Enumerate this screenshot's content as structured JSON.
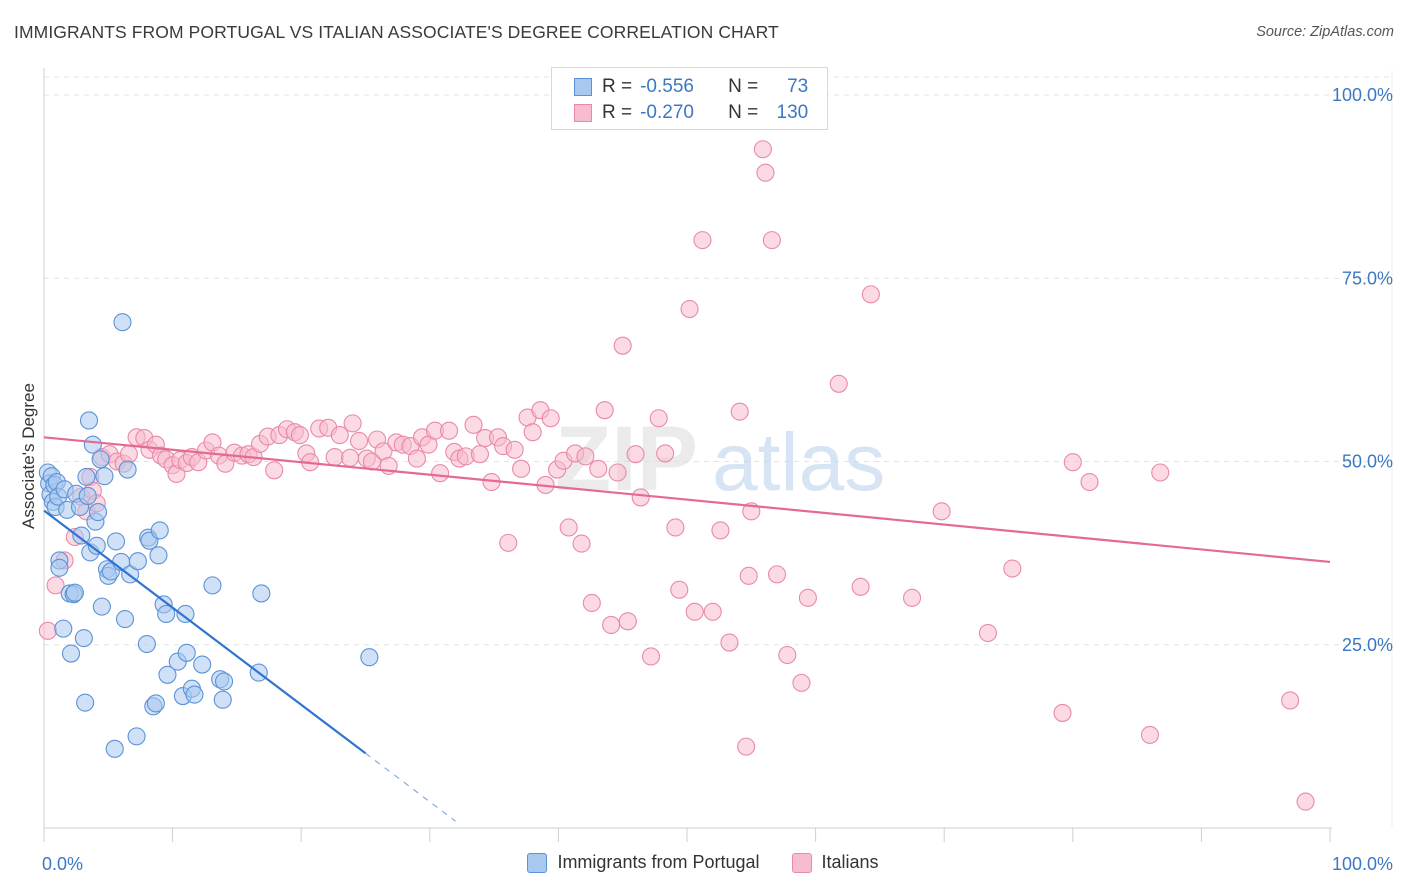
{
  "header": {
    "title": "IMMIGRANTS FROM PORTUGAL VS ITALIAN ASSOCIATE'S DEGREE CORRELATION CHART",
    "source": "Source: ZipAtlas.com"
  },
  "legend_top": {
    "rows": [
      {
        "r_label": "R =",
        "r_value": "-0.556",
        "n_label": "N =",
        "n_value": "73"
      },
      {
        "r_label": "R =",
        "r_value": "-0.270",
        "n_label": "N =",
        "n_value": "130"
      }
    ]
  },
  "watermark": {
    "zip": "ZIP",
    "atlas": "atlas"
  },
  "colors": {
    "blue_fill": "#a9c8f0",
    "blue_stroke": "#5b93d6",
    "blue_line": "#2f74d0",
    "pink_fill": "#f7bccd",
    "pink_stroke": "#e88aa8",
    "pink_line": "#e36a92",
    "tick_label": "#3b78c4"
  },
  "chart_data": {
    "type": "scatter",
    "title": "IMMIGRANTS FROM PORTUGAL VS ITALIAN ASSOCIATE'S DEGREE CORRELATION CHART",
    "xlabel": "",
    "ylabel": "Associate's Degree",
    "xlim": [
      0,
      100
    ],
    "ylim": [
      0,
      100
    ],
    "x_tick_labels": [
      "0.0%",
      "100.0%"
    ],
    "y_ticks": [
      25,
      50,
      75,
      100
    ],
    "y_tick_labels": [
      "25.0%",
      "50.0%",
      "75.0%",
      "100.0%"
    ],
    "grid": true,
    "legend_position": "bottom-center",
    "series": [
      {
        "name": "Immigrants from Portugal",
        "color": "#a9c8f0",
        "r": -0.556,
        "n": 73,
        "trend": {
          "x0": 0,
          "y0": 43.3,
          "x1": 25,
          "y1": 10.2,
          "dashed_to_x": 32
        },
        "points": [
          [
            0.3,
            48.5
          ],
          [
            0.4,
            47.0
          ],
          [
            0.5,
            45.5
          ],
          [
            0.6,
            48.0
          ],
          [
            0.7,
            44.5
          ],
          [
            0.8,
            46.8
          ],
          [
            0.9,
            43.8
          ],
          [
            1.0,
            47.2
          ],
          [
            1.1,
            45.2
          ],
          [
            1.2,
            36.5
          ],
          [
            1.2,
            35.5
          ],
          [
            1.5,
            27.2
          ],
          [
            1.6,
            46.2
          ],
          [
            1.8,
            43.4
          ],
          [
            2.0,
            32.0
          ],
          [
            2.1,
            23.8
          ],
          [
            2.3,
            31.9
          ],
          [
            2.4,
            32.1
          ],
          [
            2.5,
            45.6
          ],
          [
            2.8,
            43.8
          ],
          [
            2.9,
            39.9
          ],
          [
            3.1,
            25.9
          ],
          [
            3.2,
            17.1
          ],
          [
            3.3,
            47.9
          ],
          [
            3.4,
            45.3
          ],
          [
            3.5,
            55.6
          ],
          [
            3.6,
            37.6
          ],
          [
            3.8,
            52.3
          ],
          [
            4.0,
            41.8
          ],
          [
            4.1,
            38.5
          ],
          [
            4.2,
            43.1
          ],
          [
            4.4,
            50.3
          ],
          [
            4.5,
            30.2
          ],
          [
            4.7,
            48.0
          ],
          [
            4.9,
            35.3
          ],
          [
            5.0,
            34.4
          ],
          [
            5.2,
            35.0
          ],
          [
            5.5,
            10.8
          ],
          [
            5.6,
            39.1
          ],
          [
            6.0,
            36.3
          ],
          [
            6.1,
            69.0
          ],
          [
            6.3,
            28.5
          ],
          [
            6.5,
            48.9
          ],
          [
            6.7,
            34.6
          ],
          [
            7.2,
            12.5
          ],
          [
            7.3,
            36.4
          ],
          [
            8.0,
            25.1
          ],
          [
            8.1,
            39.6
          ],
          [
            8.2,
            39.2
          ],
          [
            8.5,
            16.6
          ],
          [
            8.7,
            17.0
          ],
          [
            8.9,
            37.2
          ],
          [
            9.0,
            40.6
          ],
          [
            9.3,
            30.5
          ],
          [
            9.5,
            29.2
          ],
          [
            9.6,
            20.9
          ],
          [
            10.4,
            22.7
          ],
          [
            10.8,
            18.0
          ],
          [
            11.0,
            29.2
          ],
          [
            11.1,
            23.9
          ],
          [
            11.5,
            19.0
          ],
          [
            11.7,
            18.2
          ],
          [
            12.3,
            22.3
          ],
          [
            13.1,
            33.1
          ],
          [
            13.7,
            20.3
          ],
          [
            13.9,
            17.5
          ],
          [
            14.0,
            20.0
          ],
          [
            16.7,
            21.2
          ],
          [
            16.9,
            32.0
          ],
          [
            25.3,
            23.3
          ]
        ]
      },
      {
        "name": "Italians",
        "color": "#f7bccd",
        "r": -0.27,
        "n": 130,
        "trend": {
          "x0": 0,
          "y0": 53.3,
          "x1": 100,
          "y1": 36.3
        },
        "points": [
          [
            0.3,
            26.9
          ],
          [
            0.9,
            33.1
          ],
          [
            1.6,
            36.5
          ],
          [
            2.4,
            39.7
          ],
          [
            2.9,
            45.2
          ],
          [
            3.3,
            43.2
          ],
          [
            3.6,
            47.9
          ],
          [
            3.8,
            46.0
          ],
          [
            4.1,
            44.3
          ],
          [
            4.5,
            50.6
          ],
          [
            5.1,
            51.0
          ],
          [
            5.7,
            50.0
          ],
          [
            6.2,
            49.7
          ],
          [
            6.6,
            51.0
          ],
          [
            7.2,
            53.3
          ],
          [
            7.8,
            53.2
          ],
          [
            8.2,
            51.6
          ],
          [
            8.7,
            52.3
          ],
          [
            9.1,
            50.8
          ],
          [
            9.5,
            50.3
          ],
          [
            10.0,
            49.5
          ],
          [
            10.3,
            48.3
          ],
          [
            10.6,
            50.2
          ],
          [
            11.1,
            49.8
          ],
          [
            11.5,
            50.6
          ],
          [
            12.0,
            49.9
          ],
          [
            12.6,
            51.5
          ],
          [
            13.1,
            52.6
          ],
          [
            13.6,
            50.8
          ],
          [
            14.1,
            49.7
          ],
          [
            14.8,
            51.2
          ],
          [
            15.4,
            50.8
          ],
          [
            15.9,
            51.0
          ],
          [
            16.3,
            50.6
          ],
          [
            16.8,
            52.4
          ],
          [
            17.4,
            53.4
          ],
          [
            17.9,
            48.8
          ],
          [
            18.3,
            53.6
          ],
          [
            18.9,
            54.4
          ],
          [
            19.5,
            54.0
          ],
          [
            19.9,
            53.6
          ],
          [
            20.4,
            51.1
          ],
          [
            20.7,
            49.9
          ],
          [
            21.4,
            54.5
          ],
          [
            22.1,
            54.6
          ],
          [
            22.6,
            50.6
          ],
          [
            23.0,
            53.6
          ],
          [
            23.8,
            50.5
          ],
          [
            24.0,
            55.2
          ],
          [
            24.5,
            52.8
          ],
          [
            25.1,
            50.4
          ],
          [
            25.5,
            50.0
          ],
          [
            25.9,
            53.0
          ],
          [
            26.4,
            51.4
          ],
          [
            26.8,
            49.4
          ],
          [
            27.4,
            52.6
          ],
          [
            27.9,
            52.3
          ],
          [
            28.5,
            52.1
          ],
          [
            29.0,
            50.4
          ],
          [
            29.4,
            53.3
          ],
          [
            29.9,
            52.3
          ],
          [
            30.4,
            54.2
          ],
          [
            30.8,
            48.4
          ],
          [
            31.5,
            54.2
          ],
          [
            31.9,
            51.3
          ],
          [
            32.3,
            50.4
          ],
          [
            32.8,
            50.7
          ],
          [
            33.4,
            55.0
          ],
          [
            33.9,
            51.0
          ],
          [
            34.3,
            53.2
          ],
          [
            34.8,
            47.2
          ],
          [
            35.3,
            53.3
          ],
          [
            35.7,
            52.1
          ],
          [
            36.1,
            38.9
          ],
          [
            36.6,
            51.6
          ],
          [
            37.1,
            49.0
          ],
          [
            37.6,
            56.0
          ],
          [
            38.0,
            54.0
          ],
          [
            38.6,
            57.0
          ],
          [
            39.0,
            46.8
          ],
          [
            39.4,
            55.9
          ],
          [
            39.9,
            48.9
          ],
          [
            40.4,
            50.1
          ],
          [
            40.8,
            41.0
          ],
          [
            41.3,
            51.1
          ],
          [
            41.8,
            38.8
          ],
          [
            42.1,
            50.7
          ],
          [
            42.6,
            30.7
          ],
          [
            43.1,
            49.0
          ],
          [
            43.6,
            57.0
          ],
          [
            44.1,
            27.7
          ],
          [
            44.6,
            48.5
          ],
          [
            45.0,
            65.8
          ],
          [
            45.4,
            28.2
          ],
          [
            46.0,
            51.0
          ],
          [
            46.4,
            45.1
          ],
          [
            47.2,
            23.4
          ],
          [
            47.8,
            55.9
          ],
          [
            48.3,
            51.1
          ],
          [
            49.1,
            41.0
          ],
          [
            49.4,
            32.5
          ],
          [
            50.2,
            70.8
          ],
          [
            50.6,
            29.5
          ],
          [
            51.2,
            80.2
          ],
          [
            52.0,
            29.5
          ],
          [
            52.6,
            40.6
          ],
          [
            53.3,
            25.3
          ],
          [
            54.1,
            56.8
          ],
          [
            54.6,
            11.1
          ],
          [
            54.8,
            34.4
          ],
          [
            55.0,
            43.2
          ],
          [
            55.9,
            92.6
          ],
          [
            56.1,
            89.4
          ],
          [
            56.6,
            80.2
          ],
          [
            57.0,
            34.6
          ],
          [
            57.8,
            23.6
          ],
          [
            58.9,
            19.8
          ],
          [
            59.4,
            31.4
          ],
          [
            61.8,
            60.6
          ],
          [
            63.5,
            32.9
          ],
          [
            64.3,
            72.8
          ],
          [
            67.5,
            31.4
          ],
          [
            69.8,
            43.2
          ],
          [
            73.4,
            26.6
          ],
          [
            75.3,
            35.4
          ],
          [
            79.2,
            15.7
          ],
          [
            80.0,
            49.9
          ],
          [
            81.3,
            47.2
          ],
          [
            86.0,
            12.7
          ],
          [
            86.8,
            48.5
          ],
          [
            96.9,
            17.4
          ],
          [
            98.1,
            3.6
          ]
        ]
      }
    ]
  },
  "legend_bottom": {
    "items": [
      {
        "label": "Immigrants from Portugal"
      },
      {
        "label": "Italians"
      }
    ]
  }
}
